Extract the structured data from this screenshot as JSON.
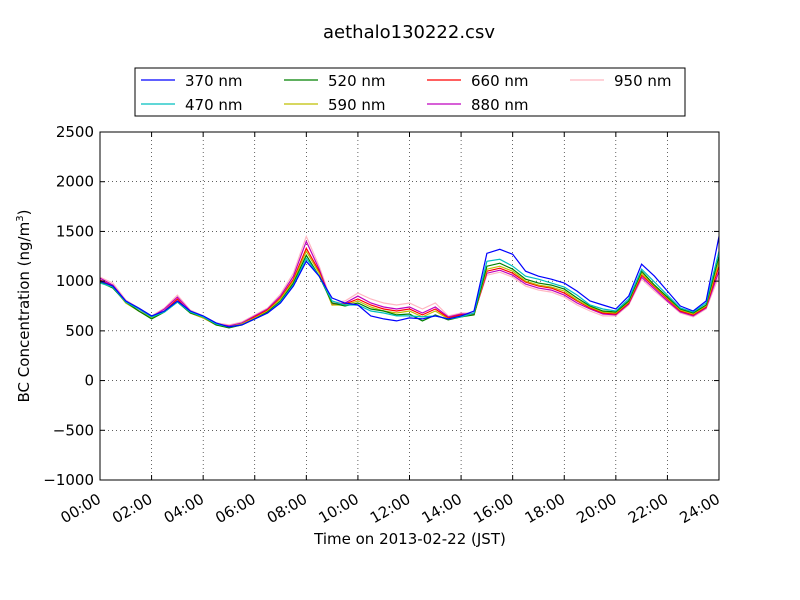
{
  "chart_data": {
    "type": "line",
    "title": "aethalo130222.csv",
    "xlabel": "Time on 2013-02-22 (JST)",
    "ylabel": "BC Concentration (ng/m",
    "ylabel_unit_sup": "3",
    "ylabel_close": ")",
    "x_range_hours": [
      0,
      24
    ],
    "ylim": [
      -1000,
      2500
    ],
    "grid": true,
    "legend_placement": "top",
    "x_ticks": [
      "00:00",
      "02:00",
      "04:00",
      "06:00",
      "08:00",
      "10:00",
      "12:00",
      "14:00",
      "16:00",
      "18:00",
      "20:00",
      "22:00",
      "24:00"
    ],
    "y_ticks": [
      "2500",
      "2000",
      "1500",
      "1000",
      "500",
      "0",
      "−1000"
    ],
    "y_tick_neg500": "−500",
    "series": [
      {
        "name": "370 nm",
        "color": "#0000ff",
        "x": [
          0,
          0.5,
          1,
          1.5,
          2,
          2.5,
          3,
          3.5,
          4,
          4.5,
          5,
          5.5,
          6,
          6.5,
          7,
          7.5,
          8,
          8.5,
          9,
          9.5,
          10,
          10.5,
          11,
          11.5,
          12,
          12.5,
          13,
          13.5,
          14,
          14.5,
          15,
          15.5,
          16,
          16.5,
          17,
          17.5,
          18,
          18.5,
          19,
          19.5,
          20,
          20.5,
          21,
          21.5,
          22,
          22.5,
          23,
          23.5,
          24
        ],
        "y": [
          1000,
          950,
          800,
          730,
          650,
          700,
          800,
          700,
          650,
          580,
          540,
          560,
          620,
          680,
          780,
          950,
          1200,
          1050,
          830,
          780,
          760,
          650,
          620,
          600,
          630,
          620,
          650,
          620,
          650,
          700,
          1280,
          1320,
          1270,
          1100,
          1050,
          1020,
          980,
          900,
          800,
          760,
          720,
          850,
          1170,
          1050,
          900,
          750,
          700,
          800,
          1450
        ]
      },
      {
        "name": "470 nm",
        "color": "#00bfbf",
        "x": [
          0,
          0.5,
          1,
          1.5,
          2,
          2.5,
          3,
          3.5,
          4,
          4.5,
          5,
          5.5,
          6,
          6.5,
          7,
          7.5,
          8,
          8.5,
          9,
          9.5,
          10,
          10.5,
          11,
          11.5,
          12,
          12.5,
          13,
          13.5,
          14,
          14.5,
          15,
          15.5,
          16,
          16.5,
          17,
          17.5,
          18,
          18.5,
          19,
          19.5,
          20,
          20.5,
          21,
          21.5,
          22,
          22.5,
          23,
          23.5,
          24
        ],
        "y": [
          980,
          940,
          790,
          720,
          640,
          690,
          790,
          690,
          640,
          570,
          540,
          560,
          620,
          680,
          790,
          960,
          1230,
          1050,
          800,
          760,
          760,
          700,
          680,
          650,
          650,
          640,
          650,
          620,
          640,
          680,
          1200,
          1220,
          1150,
          1050,
          1020,
          980,
          940,
          860,
          760,
          720,
          700,
          820,
          1120,
          990,
          860,
          730,
          690,
          780,
          1300
        ]
      },
      {
        "name": "520 nm",
        "color": "#008000",
        "x": [
          0,
          0.5,
          1,
          1.5,
          2,
          2.5,
          3,
          3.5,
          4,
          4.5,
          5,
          5.5,
          6,
          6.5,
          7,
          7.5,
          8,
          8.5,
          9,
          9.5,
          10,
          10.5,
          11,
          11.5,
          12,
          12.5,
          13,
          13.5,
          14,
          14.5,
          15,
          15.5,
          16,
          16.5,
          17,
          17.5,
          18,
          18.5,
          19,
          19.5,
          20,
          20.5,
          21,
          21.5,
          22,
          22.5,
          23,
          23.5,
          24
        ],
        "y": [
          990,
          930,
          790,
          700,
          620,
          690,
          790,
          680,
          640,
          560,
          530,
          560,
          620,
          690,
          800,
          980,
          1260,
          1050,
          780,
          750,
          780,
          720,
          700,
          660,
          670,
          600,
          660,
          610,
          640,
          660,
          1150,
          1180,
          1120,
          1020,
          980,
          960,
          920,
          830,
          750,
          700,
          690,
          800,
          1100,
          960,
          840,
          720,
          680,
          760,
          1250
        ]
      },
      {
        "name": "590 nm",
        "color": "#bfbf00",
        "x": [
          0,
          0.5,
          1,
          1.5,
          2,
          2.5,
          3,
          3.5,
          4,
          4.5,
          5,
          5.5,
          6,
          6.5,
          7,
          7.5,
          8,
          8.5,
          9,
          9.5,
          10,
          10.5,
          11,
          11.5,
          12,
          12.5,
          13,
          13.5,
          14,
          14.5,
          15,
          15.5,
          16,
          16.5,
          17,
          17.5,
          18,
          18.5,
          19,
          19.5,
          20,
          20.5,
          21,
          21.5,
          22,
          22.5,
          23,
          23.5,
          24
        ],
        "y": [
          1000,
          940,
          780,
          700,
          630,
          700,
          800,
          680,
          630,
          560,
          540,
          570,
          630,
          700,
          820,
          1000,
          1300,
          1080,
          760,
          760,
          800,
          740,
          700,
          680,
          700,
          640,
          700,
          620,
          650,
          660,
          1120,
          1150,
          1100,
          1000,
          960,
          940,
          900,
          810,
          740,
          690,
          680,
          790,
          1080,
          950,
          830,
          710,
          670,
          750,
          1200
        ]
      },
      {
        "name": "660 nm",
        "color": "#ff0000",
        "x": [
          0,
          0.5,
          1,
          1.5,
          2,
          2.5,
          3,
          3.5,
          4,
          4.5,
          5,
          5.5,
          6,
          6.5,
          7,
          7.5,
          8,
          8.5,
          9,
          9.5,
          10,
          10.5,
          11,
          11.5,
          12,
          12.5,
          13,
          13.5,
          14,
          14.5,
          15,
          15.5,
          16,
          16.5,
          17,
          17.5,
          18,
          18.5,
          19,
          19.5,
          20,
          20.5,
          21,
          21.5,
          22,
          22.5,
          23,
          23.5,
          24
        ],
        "y": [
          1010,
          950,
          790,
          700,
          630,
          700,
          820,
          680,
          630,
          560,
          540,
          570,
          640,
          710,
          830,
          1020,
          1330,
          1100,
          760,
          770,
          820,
          760,
          720,
          700,
          720,
          660,
          720,
          630,
          660,
          660,
          1100,
          1130,
          1080,
          990,
          950,
          930,
          880,
          800,
          730,
          680,
          670,
          780,
          1060,
          940,
          820,
          700,
          660,
          740,
          1150
        ]
      },
      {
        "name": "880 nm",
        "color": "#bf00bf",
        "x": [
          0,
          0.5,
          1,
          1.5,
          2,
          2.5,
          3,
          3.5,
          4,
          4.5,
          5,
          5.5,
          6,
          6.5,
          7,
          7.5,
          8,
          8.5,
          9,
          9.5,
          10,
          10.5,
          11,
          11.5,
          12,
          12.5,
          13,
          13.5,
          14,
          14.5,
          15,
          15.5,
          16,
          16.5,
          17,
          17.5,
          18,
          18.5,
          19,
          19.5,
          20,
          20.5,
          21,
          21.5,
          22,
          22.5,
          23,
          23.5,
          24
        ],
        "y": [
          1030,
          960,
          800,
          720,
          640,
          720,
          840,
          700,
          640,
          570,
          550,
          580,
          650,
          720,
          850,
          1050,
          1400,
          1120,
          770,
          780,
          850,
          780,
          740,
          720,
          740,
          680,
          740,
          640,
          670,
          670,
          1080,
          1110,
          1060,
          970,
          930,
          910,
          860,
          780,
          720,
          670,
          660,
          770,
          1040,
          920,
          800,
          690,
          650,
          730,
          1100
        ]
      },
      {
        "name": "950 nm",
        "color": "#ffb6c1",
        "x": [
          0,
          0.5,
          1,
          1.5,
          2,
          2.5,
          3,
          3.5,
          4,
          4.5,
          5,
          5.5,
          6,
          6.5,
          7,
          7.5,
          8,
          8.5,
          9,
          9.5,
          10,
          10.5,
          11,
          11.5,
          12,
          12.5,
          13,
          13.5,
          14,
          14.5,
          15,
          15.5,
          16,
          16.5,
          17,
          17.5,
          18,
          18.5,
          19,
          19.5,
          20,
          20.5,
          21,
          21.5,
          22,
          22.5,
          23,
          23.5,
          24
        ],
        "y": [
          1040,
          980,
          810,
          730,
          650,
          730,
          860,
          710,
          650,
          580,
          560,
          590,
          660,
          730,
          870,
          1080,
          1450,
          1150,
          780,
          800,
          880,
          820,
          780,
          760,
          780,
          720,
          780,
          650,
          680,
          680,
          1060,
          1090,
          1040,
          950,
          910,
          890,
          840,
          760,
          700,
          650,
          650,
          760,
          1020,
          900,
          790,
          680,
          640,
          720,
          1050
        ]
      }
    ]
  }
}
